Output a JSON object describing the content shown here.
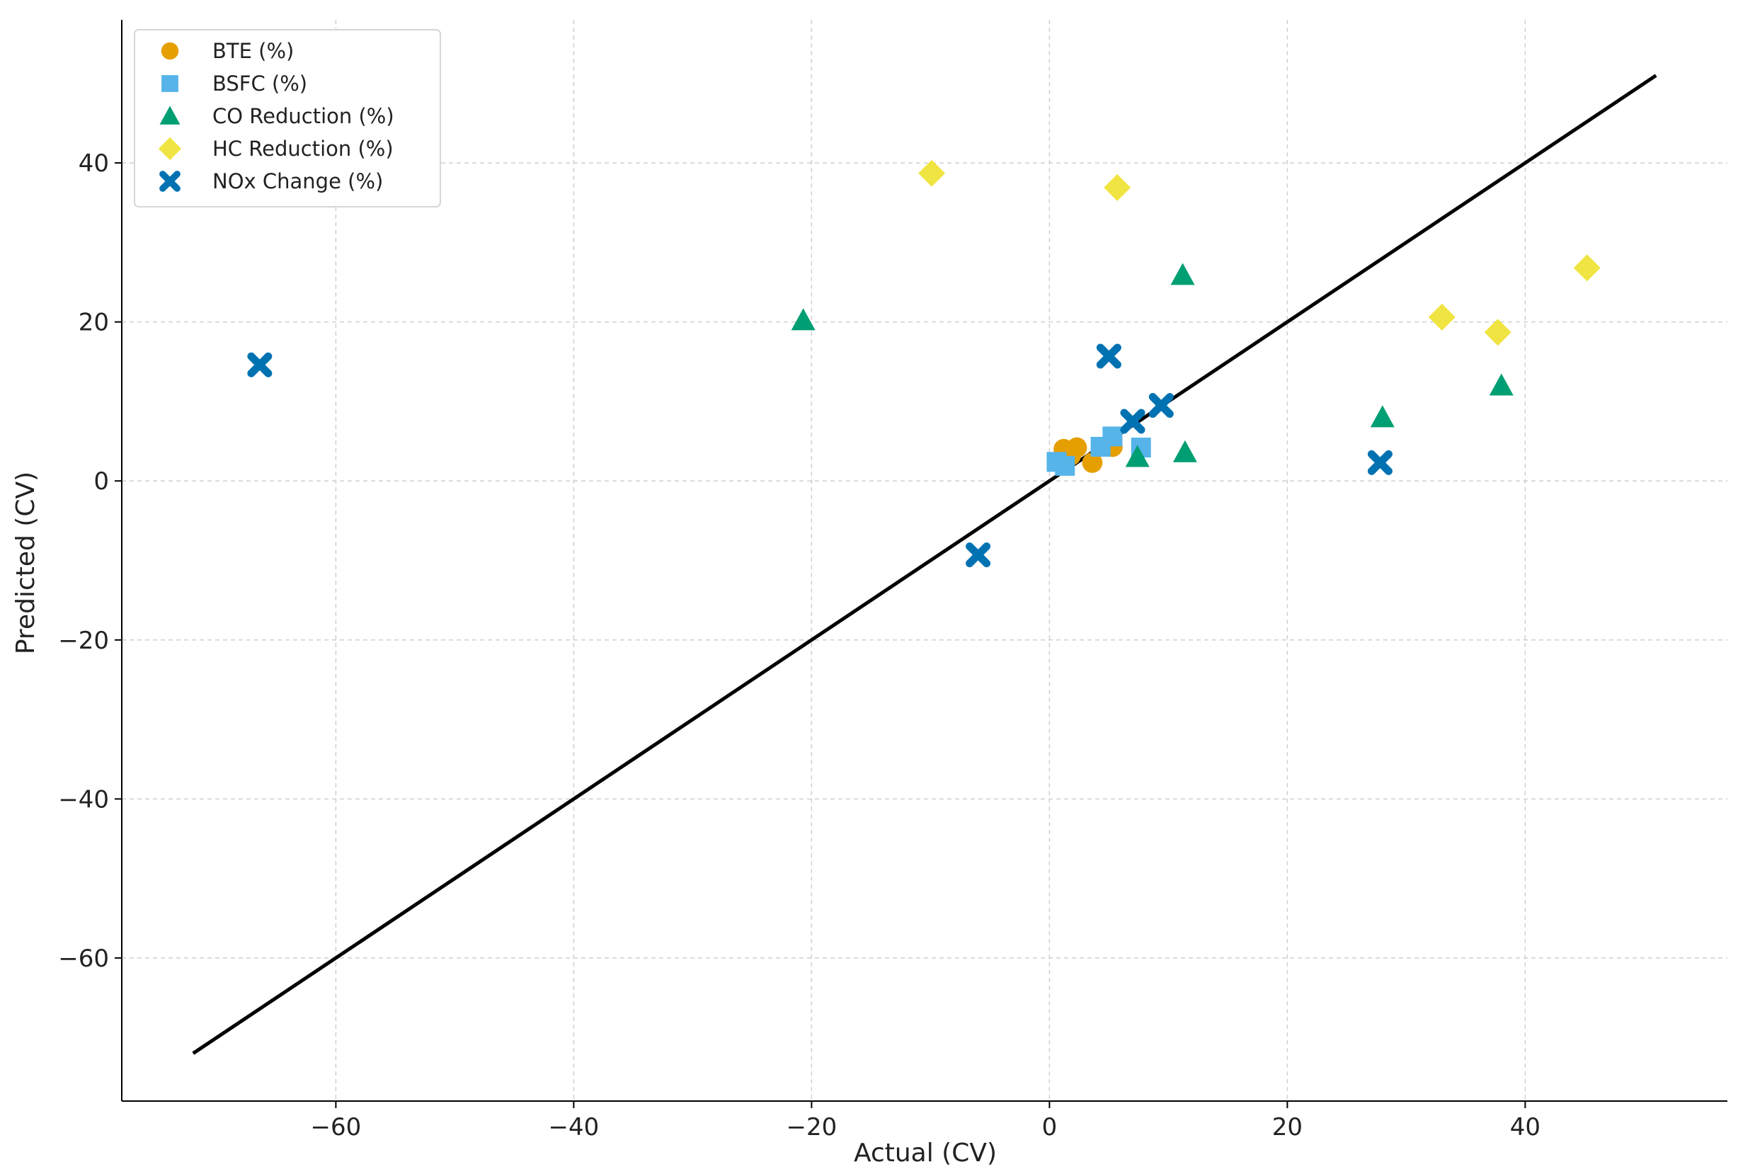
{
  "chart_data": {
    "type": "scatter",
    "xlabel": "Actual (CV)",
    "ylabel": "Predicted (CV)",
    "xlim": [
      -78,
      57
    ],
    "ylim": [
      -78,
      58
    ],
    "xticks": [
      -60,
      -40,
      -20,
      0,
      20,
      40
    ],
    "yticks": [
      -60,
      -40,
      -20,
      0,
      20,
      40
    ],
    "grid": true,
    "legend_position": "top-left",
    "reference_line": {
      "from": [
        -72,
        -72
      ],
      "to": [
        51,
        51
      ],
      "color": "#000000"
    },
    "series": [
      {
        "name": "BTE (%)",
        "marker": "circle",
        "color": "#E69F00",
        "points": [
          [
            1.2,
            4.0
          ],
          [
            1.8,
            3.2
          ],
          [
            2.3,
            4.2
          ],
          [
            3.6,
            2.3
          ],
          [
            5.3,
            4.3
          ]
        ]
      },
      {
        "name": "BSFC (%)",
        "marker": "square",
        "color": "#56B4E9",
        "points": [
          [
            0.6,
            2.4
          ],
          [
            1.3,
            1.9
          ],
          [
            4.3,
            4.3
          ],
          [
            5.3,
            5.6
          ],
          [
            7.7,
            4.2
          ]
        ]
      },
      {
        "name": "CO Reduction (%)",
        "marker": "triangle",
        "color": "#009E73",
        "points": [
          [
            -20.7,
            20.2
          ],
          [
            7.4,
            3.0
          ],
          [
            11.2,
            25.9
          ],
          [
            11.4,
            3.6
          ],
          [
            28.0,
            8.0
          ],
          [
            38.0,
            12.0
          ]
        ]
      },
      {
        "name": "HC Reduction (%)",
        "marker": "diamond",
        "color": "#F0E442",
        "points": [
          [
            -9.9,
            38.7
          ],
          [
            5.7,
            36.9
          ],
          [
            33.0,
            20.6
          ],
          [
            37.7,
            18.7
          ],
          [
            45.2,
            26.8
          ]
        ]
      },
      {
        "name": "NOx Change (%)",
        "marker": "x",
        "color": "#0072B2",
        "points": [
          [
            -66.4,
            14.6
          ],
          [
            -6.0,
            -9.3
          ],
          [
            5.0,
            15.7
          ],
          [
            7.0,
            7.5
          ],
          [
            9.4,
            9.5
          ],
          [
            27.8,
            2.3
          ]
        ]
      }
    ]
  }
}
